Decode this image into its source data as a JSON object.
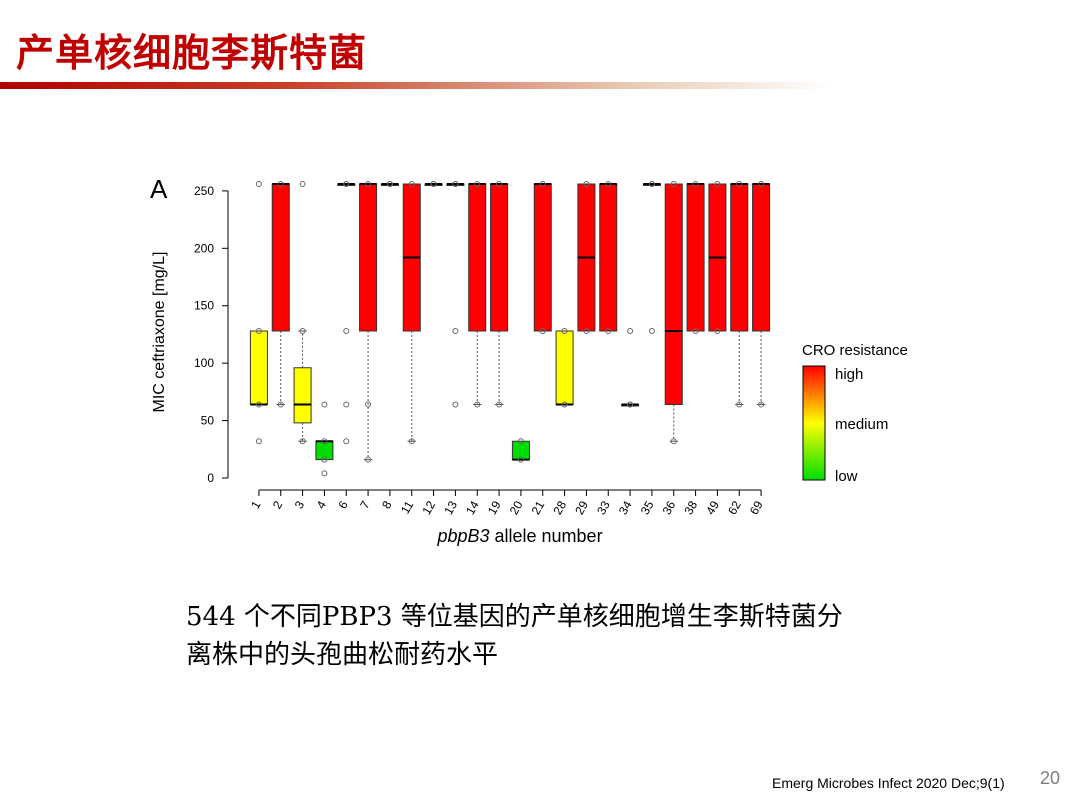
{
  "slide": {
    "title": "产单核细胞李斯特菌",
    "caption_line1": "544 个不同PBP3 等位基因的产单核细胞增生李斯特菌分",
    "caption_line2": "离株中的头孢曲松耐药水平",
    "citation": "Emerg Microbes Infect 2020 Dec;9(1)",
    "page_number": "20"
  },
  "colors": {
    "accent": "#c00000",
    "high": "#ff0000",
    "medium": "#ffff00",
    "low": "#00dd00"
  },
  "chart_data": {
    "type": "boxplot",
    "panel_label": "A",
    "xlabel_italic": "pbpB3",
    "xlabel_rest": " allele number",
    "ylabel": "MIC ceftriaxone [mg/L]",
    "ylim": [
      0,
      256
    ],
    "yticks": [
      0,
      50,
      100,
      150,
      200,
      250
    ],
    "legend": {
      "title": "CRO resistance",
      "labels": [
        "high",
        "medium",
        "low"
      ],
      "position": "right"
    },
    "categories": [
      "1",
      "2",
      "3",
      "4",
      "6",
      "7",
      "8",
      "11",
      "12",
      "13",
      "14",
      "19",
      "20",
      "21",
      "28",
      "29",
      "33",
      "34",
      "35",
      "36",
      "38",
      "49",
      "62",
      "69"
    ],
    "boxes": [
      {
        "q1": 64,
        "median": 64,
        "q3": 128,
        "whisker_low": 64,
        "whisker_high": 128,
        "outliers": [
          32,
          256
        ],
        "color": "medium"
      },
      {
        "q1": 128,
        "median": 256,
        "q3": 256,
        "whisker_low": 64,
        "whisker_high": 256,
        "outliers": [],
        "color": "high"
      },
      {
        "q1": 48,
        "median": 64,
        "q3": 96,
        "whisker_low": 32,
        "whisker_high": 128,
        "outliers": [
          256
        ],
        "color": "medium"
      },
      {
        "q1": 16,
        "median": 32,
        "q3": 32,
        "whisker_low": 16,
        "whisker_high": 32,
        "outliers": [
          4,
          64
        ],
        "color": "low"
      },
      {
        "q1": 256,
        "median": 256,
        "q3": 256,
        "whisker_low": 256,
        "whisker_high": 256,
        "outliers": [
          32,
          64,
          128
        ],
        "color": "high"
      },
      {
        "q1": 128,
        "median": 256,
        "q3": 256,
        "whisker_low": 16,
        "whisker_high": 256,
        "outliers": [
          64
        ],
        "color": "high"
      },
      {
        "q1": 256,
        "median": 256,
        "q3": 256,
        "whisker_low": 256,
        "whisker_high": 256,
        "outliers": [],
        "color": "high"
      },
      {
        "q1": 128,
        "median": 192,
        "q3": 256,
        "whisker_low": 32,
        "whisker_high": 256,
        "outliers": [],
        "color": "high"
      },
      {
        "q1": 256,
        "median": 256,
        "q3": 256,
        "whisker_low": 256,
        "whisker_high": 256,
        "outliers": [],
        "color": "high"
      },
      {
        "q1": 256,
        "median": 256,
        "q3": 256,
        "whisker_low": 256,
        "whisker_high": 256,
        "outliers": [
          64,
          128
        ],
        "color": "high"
      },
      {
        "q1": 128,
        "median": 256,
        "q3": 256,
        "whisker_low": 64,
        "whisker_high": 256,
        "outliers": [],
        "color": "high"
      },
      {
        "q1": 128,
        "median": 256,
        "q3": 256,
        "whisker_low": 64,
        "whisker_high": 256,
        "outliers": [],
        "color": "high"
      },
      {
        "q1": 16,
        "median": 16,
        "q3": 32,
        "whisker_low": 16,
        "whisker_high": 32,
        "outliers": [],
        "color": "low"
      },
      {
        "q1": 128,
        "median": 256,
        "q3": 256,
        "whisker_low": 128,
        "whisker_high": 256,
        "outliers": [],
        "color": "high"
      },
      {
        "q1": 64,
        "median": 64,
        "q3": 128,
        "whisker_low": 64,
        "whisker_high": 128,
        "outliers": [],
        "color": "medium"
      },
      {
        "q1": 128,
        "median": 192,
        "q3": 256,
        "whisker_low": 128,
        "whisker_high": 256,
        "outliers": [],
        "color": "high"
      },
      {
        "q1": 128,
        "median": 256,
        "q3": 256,
        "whisker_low": 128,
        "whisker_high": 256,
        "outliers": [],
        "color": "high"
      },
      {
        "q1": 64,
        "median": 64,
        "q3": 64,
        "whisker_low": 64,
        "whisker_high": 64,
        "outliers": [
          128
        ],
        "color": "high"
      },
      {
        "q1": 256,
        "median": 256,
        "q3": 256,
        "whisker_low": 256,
        "whisker_high": 256,
        "outliers": [
          128
        ],
        "color": "high"
      },
      {
        "q1": 64,
        "median": 128,
        "q3": 256,
        "whisker_low": 32,
        "whisker_high": 256,
        "outliers": [],
        "color": "high"
      },
      {
        "q1": 128,
        "median": 256,
        "q3": 256,
        "whisker_low": 128,
        "whisker_high": 256,
        "outliers": [],
        "color": "high"
      },
      {
        "q1": 128,
        "median": 192,
        "q3": 256,
        "whisker_low": 128,
        "whisker_high": 256,
        "outliers": [],
        "color": "high"
      },
      {
        "q1": 128,
        "median": 256,
        "q3": 256,
        "whisker_low": 64,
        "whisker_high": 256,
        "outliers": [],
        "color": "high"
      },
      {
        "q1": 128,
        "median": 256,
        "q3": 256,
        "whisker_low": 64,
        "whisker_high": 256,
        "outliers": [],
        "color": "high"
      }
    ]
  }
}
